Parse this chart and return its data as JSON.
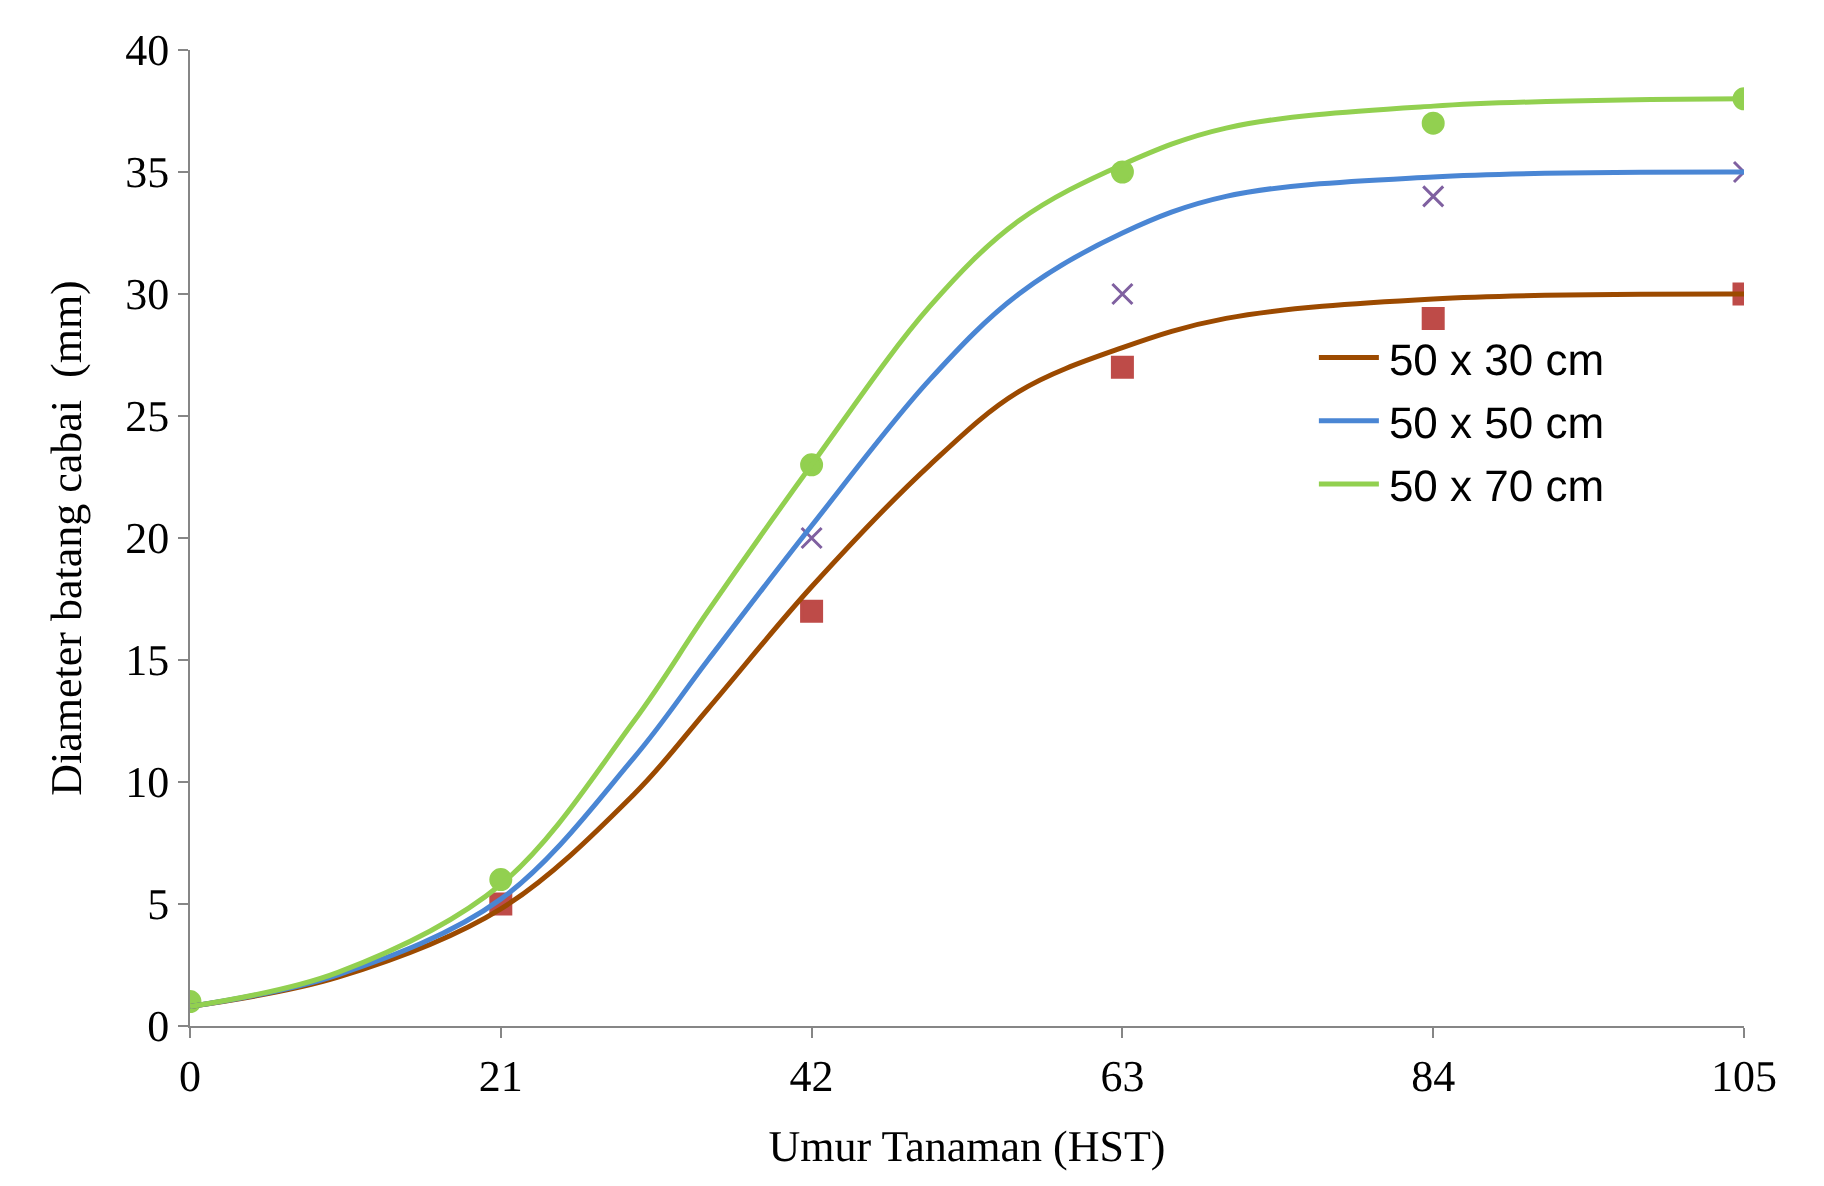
{
  "chart_data": {
    "type": "line",
    "xlabel": "Umur Tanaman (HST)",
    "ylabel": "Diameter batang cabai  (mm)",
    "xlim": [
      0,
      105
    ],
    "xticks": [
      0,
      21,
      42,
      63,
      84,
      105
    ],
    "ylim": [
      0,
      40
    ],
    "yticks": [
      0,
      5,
      10,
      15,
      20,
      25,
      30,
      35,
      40
    ],
    "legend": "right",
    "series": [
      {
        "type": "scatter",
        "marker": "square",
        "color": "#be4b48",
        "x": [
          21,
          42,
          63,
          84,
          105
        ],
        "values": [
          5,
          17,
          27,
          29,
          30
        ]
      },
      {
        "type": "scatter",
        "marker": "cross",
        "color": "#7f60a0",
        "x": [
          42,
          63,
          84,
          105
        ],
        "values": [
          20,
          30,
          34,
          35
        ]
      },
      {
        "type": "scatter",
        "marker": "circle",
        "color": "#92d050",
        "x": [
          0,
          21,
          42,
          63,
          84,
          105
        ],
        "values": [
          1,
          6,
          23,
          35,
          37,
          38
        ]
      },
      {
        "name": "50 x 30 cm",
        "color": "#9c4a00",
        "x": [
          0,
          10,
          21,
          30,
          35,
          42,
          50,
          56,
          63,
          70,
          84,
          105
        ],
        "values": [
          0.8,
          2,
          4.8,
          9.5,
          13,
          18,
          23,
          26,
          27.8,
          29,
          29.8,
          30
        ]
      },
      {
        "name": "50 x 50 cm",
        "color": "#4a86d4",
        "x": [
          0,
          10,
          21,
          30,
          35,
          42,
          50,
          56,
          63,
          70,
          84,
          105
        ],
        "values": [
          0.8,
          2.1,
          5.2,
          11,
          15,
          20.5,
          26.5,
          30,
          32.5,
          34,
          34.8,
          35
        ]
      },
      {
        "name": "50 x 70 cm",
        "color": "#92d050",
        "x": [
          0,
          10,
          21,
          30,
          35,
          42,
          50,
          56,
          63,
          70,
          84,
          105
        ],
        "values": [
          0.8,
          2.2,
          5.8,
          12.5,
          17,
          23,
          29.5,
          33,
          35.3,
          36.8,
          37.7,
          38
        ]
      }
    ]
  }
}
